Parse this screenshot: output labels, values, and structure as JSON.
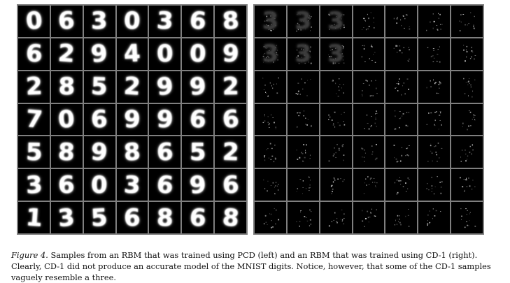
{
  "figure": {
    "left_samples": {
      "description": "PCD",
      "rows": [
        [
          "0",
          "6",
          "3",
          "0",
          "3",
          "6",
          "8"
        ],
        [
          "6",
          "2",
          "9",
          "4",
          "0",
          "0",
          "9"
        ],
        [
          "2",
          "8",
          "5",
          "2",
          "9",
          "9",
          "2"
        ],
        [
          "7",
          "0",
          "6",
          "9",
          "9",
          "6",
          "6"
        ],
        [
          "5",
          "8",
          "9",
          "8",
          "6",
          "5",
          "2"
        ],
        [
          "3",
          "6",
          "0",
          "3",
          "6",
          "9",
          "6"
        ],
        [
          "1",
          "3",
          "5",
          "6",
          "8",
          "6",
          "8"
        ]
      ]
    },
    "right_samples": {
      "description": "CD-1",
      "cells": [
        [
          "3",
          "3",
          "3",
          "",
          "",
          "",
          ""
        ],
        [
          "3",
          "3",
          "3",
          "",
          "",
          "",
          ""
        ],
        [
          "",
          "",
          "",
          "",
          "",
          "",
          ""
        ],
        [
          "",
          "",
          "",
          "",
          "",
          "",
          ""
        ],
        [
          "",
          "",
          "",
          "",
          "",
          "",
          ""
        ],
        [
          "",
          "",
          "",
          "",
          "",
          "",
          ""
        ],
        [
          "",
          "",
          "",
          "",
          "",
          "",
          ""
        ]
      ]
    }
  },
  "caption": {
    "label": "Figure 4.",
    "text": "Samples from an RBM that was trained using PCD (left) and an RBM that was trained using CD-1 (right). Clearly, CD-1 did not produce an accurate model of the MNIST digits. Notice, however, that some of the CD-1 samples vaguely resemble a three."
  },
  "colors": {
    "panel_bg": "#000000",
    "grid_line": "#7f7f7f",
    "digit": "#ffffff",
    "caption_text": "#111111"
  }
}
